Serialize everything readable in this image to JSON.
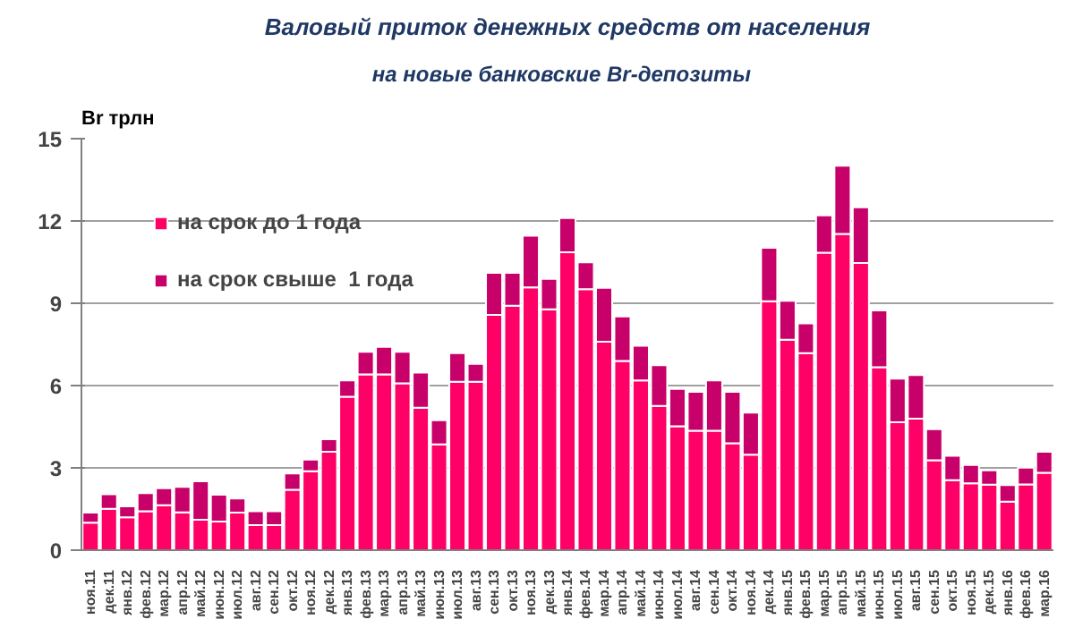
{
  "chart_data": {
    "type": "bar",
    "title": "Валовый приток денежных средств от населения",
    "subtitle": "на новые  банковские  Br-депозиты",
    "ylabel": "Br трлн",
    "categories": [
      "ноя.11",
      "дек.11",
      "янв.12",
      "фев.12",
      "мар.12",
      "апр.12",
      "май.12",
      "июн.12",
      "июл.12",
      "авг.12",
      "сен.12",
      "окт.12",
      "ноя.12",
      "дек.12",
      "янв.13",
      "фев.13",
      "мар.13",
      "апр.13",
      "май.13",
      "июн.13",
      "июл.13",
      "авг.13",
      "сен.13",
      "окт.13",
      "ноя.13",
      "дек.13",
      "янв.14",
      "фев.14",
      "мар.14",
      "апр.14",
      "май.14",
      "июн.14",
      "июл.14",
      "авг.14",
      "сен.14",
      "окт.14",
      "ноя.14",
      "дек.14",
      "янв.15",
      "фев.15",
      "мар.15",
      "апр.15",
      "май.15",
      "июн.15",
      "июл.15",
      "авг.15",
      "сен.15",
      "окт.15",
      "ноя.15",
      "дек.15",
      "янв.16",
      "фев.16",
      "мар.16"
    ],
    "series": [
      {
        "name": "на срок до 1 года",
        "color": "#ff0066",
        "values": [
          1.0,
          1.51,
          1.2,
          1.42,
          1.64,
          1.38,
          1.11,
          1.04,
          1.37,
          0.91,
          0.91,
          2.2,
          2.88,
          3.59,
          5.59,
          6.41,
          6.41,
          6.08,
          5.19,
          3.86,
          6.14,
          6.14,
          8.58,
          8.91,
          9.58,
          8.78,
          10.86,
          9.51,
          7.6,
          6.9,
          6.19,
          5.26,
          4.52,
          4.35,
          4.35,
          3.9,
          3.48,
          9.07,
          7.67,
          7.18,
          10.84,
          11.53,
          10.47,
          6.67,
          4.66,
          4.79,
          3.28,
          2.55,
          2.44,
          2.39,
          1.77,
          2.4,
          2.82
        ]
      },
      {
        "name": "на срок свыше  1 года",
        "color": "#c8006a",
        "values": [
          0.37,
          0.53,
          0.4,
          0.66,
          0.62,
          0.93,
          1.4,
          0.98,
          0.51,
          0.51,
          0.51,
          0.6,
          0.42,
          0.45,
          0.6,
          0.82,
          1.0,
          1.15,
          1.28,
          0.88,
          1.04,
          0.65,
          1.53,
          1.2,
          1.88,
          1.11,
          1.25,
          0.98,
          1.96,
          1.62,
          1.26,
          1.48,
          1.36,
          1.42,
          1.84,
          1.87,
          1.53,
          1.95,
          1.42,
          1.09,
          1.36,
          2.48,
          2.03,
          2.07,
          1.59,
          1.59,
          1.13,
          0.89,
          0.67,
          0.52,
          0.6,
          0.61,
          0.77
        ]
      }
    ],
    "stacked": true,
    "ylim": [
      0,
      15
    ],
    "yticks": [
      0,
      3,
      6,
      9,
      12,
      15
    ],
    "grid": "y",
    "legend": "top left"
  }
}
